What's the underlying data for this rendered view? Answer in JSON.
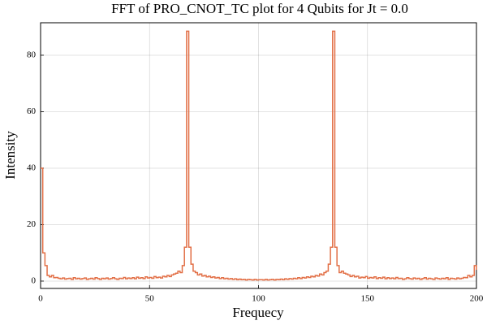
{
  "chart_data": {
    "type": "step",
    "title": "FFT of PRO_CNOT_TC plot for 4 Qubits for Jt = 0.0",
    "x_label": "Frequecy",
    "y_label": "Intensity",
    "x": [
      0,
      1,
      2,
      3,
      4,
      5,
      6,
      7,
      8,
      9,
      10,
      11,
      12,
      13,
      14,
      15,
      16,
      17,
      18,
      19,
      20,
      21,
      22,
      23,
      24,
      25,
      26,
      27,
      28,
      29,
      30,
      31,
      32,
      33,
      34,
      35,
      36,
      37,
      38,
      39,
      40,
      41,
      42,
      43,
      44,
      45,
      46,
      47,
      48,
      49,
      50,
      51,
      52,
      53,
      54,
      55,
      56,
      57,
      58,
      59,
      60,
      61,
      62,
      63,
      64,
      65,
      66,
      67,
      68,
      69,
      70,
      71,
      72,
      73,
      74,
      75,
      76,
      77,
      78,
      79,
      80,
      81,
      82,
      83,
      84,
      85,
      86,
      87,
      88,
      89,
      90,
      91,
      92,
      93,
      94,
      95,
      96,
      97,
      98,
      99,
      100,
      101,
      102,
      103,
      104,
      105,
      106,
      107,
      108,
      109,
      110,
      111,
      112,
      113,
      114,
      115,
      116,
      117,
      118,
      119,
      120,
      121,
      122,
      123,
      124,
      125,
      126,
      127,
      128,
      129,
      130,
      131,
      132,
      133,
      134,
      135,
      136,
      137,
      138,
      139,
      140,
      141,
      142,
      143,
      144,
      145,
      146,
      147,
      148,
      149,
      150,
      151,
      152,
      153,
      154,
      155,
      156,
      157,
      158,
      159,
      160,
      161,
      162,
      163,
      164,
      165,
      166,
      167,
      168,
      169,
      170,
      171,
      172,
      173,
      174,
      175,
      176,
      177,
      178,
      179,
      180,
      181,
      182,
      183,
      184,
      185,
      186,
      187,
      188,
      189,
      190,
      191,
      192,
      193,
      194,
      195,
      196,
      197,
      198,
      199,
      200
    ],
    "series": [
      {
        "color": "#e26f46",
        "values": [
          40,
          10,
          5.5,
          2,
          1.5,
          2,
          1.2,
          1.3,
          1,
          0.8,
          1.1,
          0.7,
          0.9,
          1,
          0.6,
          1.2,
          0.8,
          1,
          0.7,
          0.9,
          1.1,
          0.6,
          0.8,
          1,
          0.7,
          1.2,
          0.9,
          0.6,
          1,
          0.8,
          1.1,
          0.7,
          0.9,
          1.2,
          0.8,
          0.6,
          1,
          0.9,
          1.3,
          0.8,
          1.1,
          0.9,
          1.2,
          0.8,
          1.4,
          1,
          1.2,
          0.9,
          1.5,
          1.1,
          1.3,
          1,
          1.6,
          1.2,
          1.4,
          1.1,
          1.7,
          1.5,
          2,
          1.6,
          2.2,
          2.5,
          2.8,
          3.5,
          3,
          5.5,
          12,
          88.5,
          12,
          6,
          3.5,
          3,
          2.2,
          2.5,
          1.8,
          2,
          1.5,
          1.7,
          1.3,
          1.5,
          1.1,
          1.3,
          0.9,
          1.2,
          0.8,
          1,
          0.7,
          0.9,
          0.6,
          0.8,
          0.5,
          0.7,
          0.5,
          0.6,
          0.4,
          0.6,
          0.5,
          0.4,
          0.6,
          0.4,
          0.5,
          0.5,
          0.4,
          0.6,
          0.4,
          0.5,
          0.6,
          0.4,
          0.6,
          0.5,
          0.7,
          0.5,
          0.8,
          0.6,
          0.9,
          0.7,
          1,
          0.8,
          1.2,
          0.9,
          1.3,
          1.1,
          1.5,
          1.3,
          1.7,
          1.5,
          2,
          1.8,
          2.5,
          2.2,
          3,
          3.5,
          6,
          12,
          88.5,
          12,
          5.5,
          3,
          3.5,
          2.8,
          2.5,
          2.2,
          1.6,
          2,
          1.5,
          1.7,
          1.1,
          1.4,
          1.2,
          1.6,
          1,
          1.3,
          1.1,
          1.5,
          0.9,
          1.2,
          1,
          1.4,
          0.8,
          1.2,
          0.9,
          1.1,
          0.8,
          1.3,
          0.9,
          1,
          0.6,
          0.8,
          1.2,
          0.9,
          0.7,
          1.1,
          0.8,
          1,
          0.6,
          0.9,
          1.2,
          0.7,
          1,
          0.8,
          0.6,
          1.1,
          0.9,
          0.7,
          1,
          0.8,
          1.2,
          0.6,
          1,
          0.9,
          0.7,
          1.1,
          0.8,
          1,
          1.3,
          1.2,
          2,
          1.5,
          2,
          5.5,
          4
        ]
      }
    ],
    "xlim": [
      0,
      200
    ],
    "ylim": [
      -2.6,
      91.5
    ],
    "xticks": [
      0,
      50,
      100,
      150,
      200
    ],
    "yticks": [
      0,
      20,
      40,
      60,
      80
    ],
    "grid": true
  }
}
